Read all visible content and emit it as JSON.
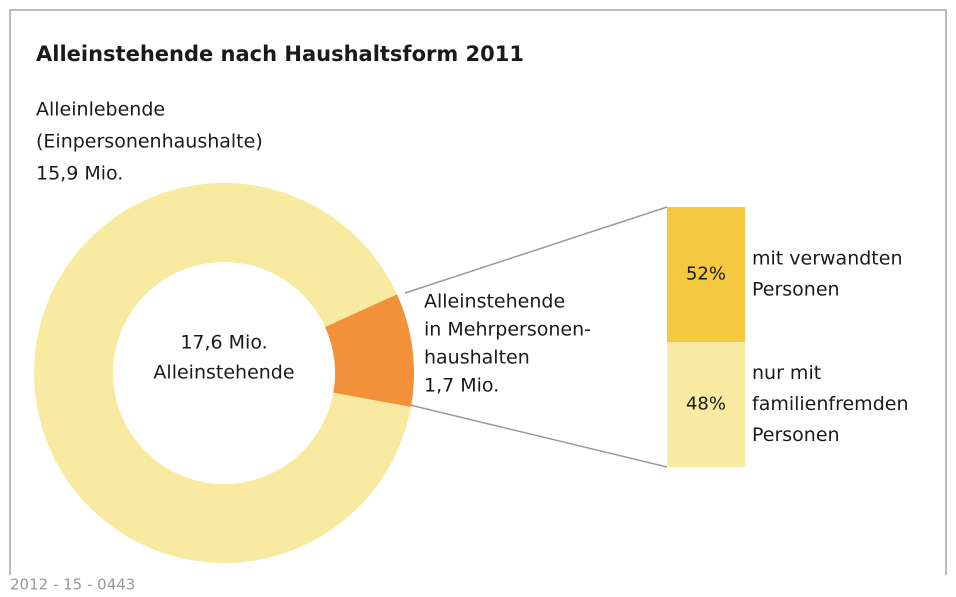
{
  "chart_data": [
    {
      "type": "pie",
      "title": "Alleinstehende nach Haushaltsform 2011",
      "categories": [
        [
          "Alleinlebende",
          "(Einpersonenhaushalte)"
        ],
        [
          "Alleinstehende",
          "in Mehrpersonen-",
          "haushalten"
        ]
      ],
      "values": [
        15.9,
        1.7
      ],
      "value_labels": [
        "15,9 Mio.",
        "1,7 Mio."
      ],
      "colors": [
        "#f8eaa0",
        "#f3903a"
      ],
      "center_label": [
        "17,6 Mio.",
        "Alleinstehende"
      ]
    },
    {
      "type": "bar",
      "categories": [
        [
          "mit verwandten",
          "Personen"
        ],
        [
          "nur mit",
          "familienfremden",
          "Personen"
        ]
      ],
      "values": [
        52,
        48
      ],
      "value_labels": [
        "52%",
        "48%"
      ],
      "colors": [
        "#f5c842",
        "#f8eaa0"
      ]
    }
  ],
  "source": "2012 - 15 - 0443"
}
